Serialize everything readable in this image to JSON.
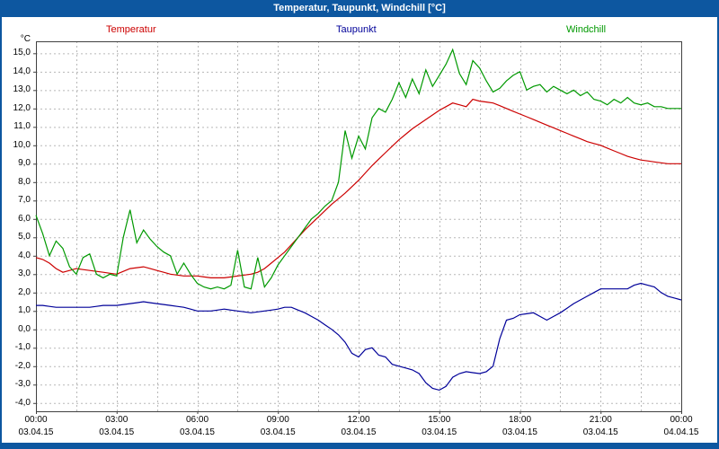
{
  "window": {
    "title": "Temperatur, Taupunkt, Windchill [°C]"
  },
  "chart_data": {
    "type": "line",
    "title": "Temperatur, Taupunkt, Windchill [°C]",
    "y_unit": "°C",
    "ylim": [
      -4,
      15
    ],
    "xlim_hours": [
      0,
      24
    ],
    "grid": "dashed, horizontal every 1 °C, vertical every 1.5 h",
    "legend_position": "top",
    "yticks": [
      "15,0",
      "14,0",
      "13,0",
      "12,0",
      "11,0",
      "10,0",
      "9,0",
      "8,0",
      "7,0",
      "6,0",
      "5,0",
      "4,0",
      "3,0",
      "2,0",
      "1,0",
      "0,0",
      "-1,0",
      "-2,0",
      "-3,0",
      "-4,0"
    ],
    "xticks": [
      {
        "time": "00:00",
        "date": "03.04.15",
        "hour": 0
      },
      {
        "time": "03:00",
        "date": "03.04.15",
        "hour": 3
      },
      {
        "time": "06:00",
        "date": "03.04.15",
        "hour": 6
      },
      {
        "time": "09:00",
        "date": "03.04.15",
        "hour": 9
      },
      {
        "time": "12:00",
        "date": "03.04.15",
        "hour": 12
      },
      {
        "time": "15:00",
        "date": "03.04.15",
        "hour": 15
      },
      {
        "time": "18:00",
        "date": "03.04.15",
        "hour": 18
      },
      {
        "time": "21:00",
        "date": "03.04.15",
        "hour": 21
      },
      {
        "time": "00:00",
        "date": "04.04.15",
        "hour": 24
      }
    ],
    "x_start_hour": 0,
    "x_step_hours": 0.25,
    "series": [
      {
        "name": "Temperatur",
        "color": "#cc0000",
        "values": [
          3.9,
          3.8,
          3.6,
          3.3,
          3.1,
          3.2,
          3.3,
          3.25,
          3.2,
          3.15,
          3.1,
          3.05,
          3.0,
          3.15,
          3.3,
          3.35,
          3.4,
          3.3,
          3.2,
          3.1,
          3.0,
          2.95,
          2.9,
          2.9,
          2.9,
          2.85,
          2.8,
          2.8,
          2.8,
          2.85,
          2.9,
          2.95,
          3.0,
          3.1,
          3.3,
          3.6,
          3.9,
          4.2,
          4.6,
          5.0,
          5.4,
          5.75,
          6.1,
          6.45,
          6.8,
          7.1,
          7.4,
          7.75,
          8.1,
          8.5,
          8.9,
          9.25,
          9.6,
          9.95,
          10.3,
          10.6,
          10.9,
          11.15,
          11.4,
          11.65,
          11.9,
          12.1,
          12.3,
          12.2,
          12.1,
          12.5,
          12.4,
          12.35,
          12.3,
          12.15,
          12.0,
          11.85,
          11.7,
          11.55,
          11.4,
          11.25,
          11.1,
          10.95,
          10.8,
          10.65,
          10.5,
          10.35,
          10.2,
          10.1,
          10.0,
          9.85,
          9.7,
          9.55,
          9.4,
          9.3,
          9.2,
          9.15,
          9.1,
          9.05,
          9.0,
          9.0,
          9.0
        ]
      },
      {
        "name": "Taupunkt",
        "color": "#000099",
        "values": [
          1.3,
          1.3,
          1.25,
          1.2,
          1.2,
          1.2,
          1.2,
          1.2,
          1.2,
          1.25,
          1.3,
          1.3,
          1.3,
          1.35,
          1.4,
          1.45,
          1.5,
          1.45,
          1.4,
          1.35,
          1.3,
          1.25,
          1.2,
          1.1,
          1.0,
          1.0,
          1.0,
          1.05,
          1.1,
          1.05,
          1.0,
          0.95,
          0.9,
          0.95,
          1.0,
          1.05,
          1.1,
          1.2,
          1.2,
          1.05,
          0.9,
          0.7,
          0.5,
          0.25,
          0.0,
          -0.3,
          -0.7,
          -1.3,
          -1.5,
          -1.1,
          -1.0,
          -1.4,
          -1.5,
          -1.9,
          -2.0,
          -2.1,
          -2.2,
          -2.4,
          -2.9,
          -3.2,
          -3.3,
          -3.1,
          -2.6,
          -2.4,
          -2.3,
          -2.35,
          -2.4,
          -2.3,
          -2.0,
          -0.5,
          0.5,
          0.6,
          0.8,
          0.85,
          0.9,
          0.7,
          0.5,
          0.7,
          0.9,
          1.15,
          1.4,
          1.6,
          1.8,
          2.0,
          2.2,
          2.2,
          2.2,
          2.2,
          2.2,
          2.4,
          2.5,
          2.4,
          2.3,
          2.0,
          1.8,
          1.7,
          1.6
        ]
      },
      {
        "name": "Windchill",
        "color": "#009900",
        "values": [
          6.2,
          5.2,
          4.0,
          4.8,
          4.4,
          3.4,
          3.0,
          3.9,
          4.1,
          3.0,
          2.8,
          3.0,
          2.9,
          5.0,
          6.5,
          4.7,
          5.4,
          4.9,
          4.5,
          4.2,
          4.0,
          3.0,
          3.6,
          3.0,
          2.5,
          2.3,
          2.2,
          2.3,
          2.2,
          2.4,
          4.3,
          2.3,
          2.2,
          3.9,
          2.3,
          2.8,
          3.5,
          4.0,
          4.5,
          5.0,
          5.5,
          6.0,
          6.3,
          6.7,
          7.0,
          8.0,
          10.8,
          9.3,
          10.5,
          9.8,
          11.5,
          12.0,
          11.8,
          12.5,
          13.4,
          12.6,
          13.6,
          12.8,
          14.1,
          13.2,
          13.8,
          14.4,
          15.2,
          13.9,
          13.3,
          14.6,
          14.2,
          13.5,
          12.9,
          13.1,
          13.5,
          13.8,
          14.0,
          13.0,
          13.2,
          13.3,
          12.9,
          13.2,
          13.0,
          12.8,
          13.0,
          12.7,
          12.9,
          12.5,
          12.4,
          12.2,
          12.5,
          12.3,
          12.6,
          12.3,
          12.2,
          12.3,
          12.1,
          12.1,
          12.0,
          12.0,
          12.0
        ]
      }
    ]
  }
}
